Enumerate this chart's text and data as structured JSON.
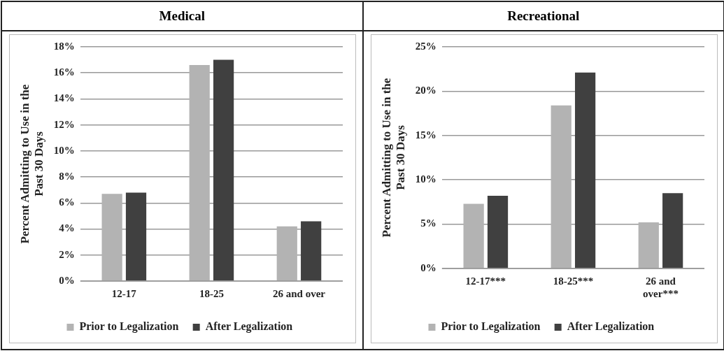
{
  "chart_data": [
    {
      "type": "bar",
      "title": "Medical",
      "ylabel": "Percent Admitting to Use in the Past 30 Days",
      "categories": [
        "12-17",
        "18-25",
        "26 and over"
      ],
      "series": [
        {
          "name": "Prior to Legalization",
          "color": "#b3b3b3",
          "values": [
            6.7,
            16.6,
            4.2
          ]
        },
        {
          "name": "After Legalization",
          "color": "#404040",
          "values": [
            6.8,
            17.0,
            4.6
          ]
        }
      ],
      "ylim": [
        0,
        18
      ],
      "yticks": [
        {
          "value": 0,
          "label": "0%"
        },
        {
          "value": 2,
          "label": "2%"
        },
        {
          "value": 4,
          "label": "4%"
        },
        {
          "value": 6,
          "label": "6%"
        },
        {
          "value": 8,
          "label": "8%"
        },
        {
          "value": 10,
          "label": "10%"
        },
        {
          "value": 12,
          "label": "12%"
        },
        {
          "value": 14,
          "label": "14%"
        },
        {
          "value": 16,
          "label": "16%"
        },
        {
          "value": 18,
          "label": "18%"
        }
      ],
      "grid": "y",
      "legend": "bottom"
    },
    {
      "type": "bar",
      "title": "Recreational",
      "ylabel": "Percent Admitting to Use in the Past 30 Days",
      "categories": [
        "12-17***",
        "18-25***",
        "26 and over***"
      ],
      "series": [
        {
          "name": "Prior to Legalization",
          "color": "#b3b3b3",
          "values": [
            7.3,
            18.4,
            5.2
          ]
        },
        {
          "name": "After Legalization",
          "color": "#404040",
          "values": [
            8.2,
            22.1,
            8.5
          ]
        }
      ],
      "ylim": [
        0,
        25
      ],
      "yticks": [
        {
          "value": 0,
          "label": "0%"
        },
        {
          "value": 5,
          "label": "5%"
        },
        {
          "value": 10,
          "label": "10%"
        },
        {
          "value": 15,
          "label": "15%"
        },
        {
          "value": 20,
          "label": "20%"
        },
        {
          "value": 25,
          "label": "25%"
        }
      ],
      "grid": "y",
      "legend": "bottom"
    }
  ]
}
